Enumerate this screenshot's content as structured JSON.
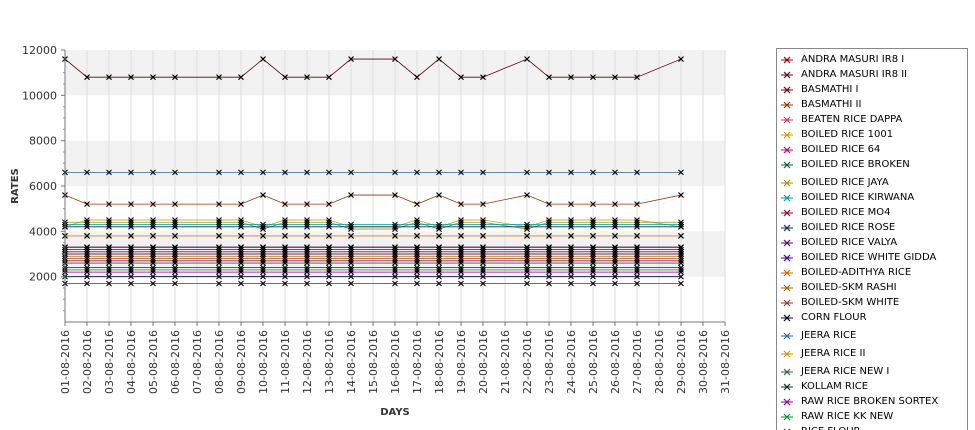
{
  "chart_data": {
    "type": "line",
    "xlabel": "DAYS",
    "ylabel": "RATES",
    "ylim": [
      0,
      12000
    ],
    "y_ticks": [
      2000,
      4000,
      6000,
      8000,
      10000,
      12000
    ],
    "y_tick_labels": [
      "2000",
      "4000",
      "6000",
      "8000",
      "10000",
      "12000"
    ],
    "x_ticks": [
      "01-08-2016",
      "02-08-2016",
      "03-08-2016",
      "04-08-2016",
      "05-08-2016",
      "06-08-2016",
      "07-08-2016",
      "08-08-2016",
      "09-08-2016",
      "10-08-2016",
      "11-08-2016",
      "12-08-2016",
      "13-08-2016",
      "14-08-2016",
      "15-08-2016",
      "16-08-2016",
      "17-08-2016",
      "18-08-2016",
      "19-08-2016",
      "20-08-2016",
      "21-08-2016",
      "22-08-2016",
      "23-08-2016",
      "24-08-2016",
      "25-08-2016",
      "26-08-2016",
      "27-08-2016",
      "28-08-2016",
      "29-08-2016",
      "30-08-2016",
      "31-08-2016"
    ],
    "x": [
      "01-08-2016",
      "02-08-2016",
      "03-08-2016",
      "04-08-2016",
      "05-08-2016",
      "06-08-2016",
      "08-08-2016",
      "09-08-2016",
      "10-08-2016",
      "11-08-2016",
      "12-08-2016",
      "13-08-2016",
      "14-08-2016",
      "16-08-2016",
      "17-08-2016",
      "18-08-2016",
      "19-08-2016",
      "20-08-2016",
      "22-08-2016",
      "23-08-2016",
      "24-08-2016",
      "25-08-2016",
      "26-08-2016",
      "27-08-2016",
      "29-08-2016"
    ],
    "grid": "alternating horizontal bands",
    "legend_position": "right",
    "series": [
      {
        "name": "ANDRA MASURI IR8 I",
        "color": "#990000",
        "values": [
          3300,
          3300,
          3300,
          3300,
          3300,
          3300,
          3300,
          3300,
          3300,
          3300,
          3300,
          3300,
          3300,
          3300,
          3300,
          3300,
          3300,
          3300,
          3300,
          3300,
          3300,
          3300,
          3300,
          3300,
          3300
        ]
      },
      {
        "name": "ANDRA MASURI IR8 II",
        "color": "#660033",
        "values": [
          3200,
          3200,
          3200,
          3200,
          3200,
          3200,
          3200,
          3200,
          3200,
          3200,
          3200,
          3200,
          3200,
          3200,
          3200,
          3200,
          3200,
          3200,
          3200,
          3200,
          3200,
          3200,
          3200,
          3200,
          3200
        ]
      },
      {
        "name": "BASMATHI I",
        "color": "#660000",
        "values": [
          11600,
          10800,
          10800,
          10800,
          10800,
          10800,
          10800,
          10800,
          11600,
          10800,
          10800,
          10800,
          11600,
          11600,
          10800,
          11600,
          10800,
          10800,
          11600,
          10800,
          10800,
          10800,
          10800,
          10800,
          11600
        ]
      },
      {
        "name": "BASMATHI II",
        "color": "#993300",
        "values": [
          5600,
          5200,
          5200,
          5200,
          5200,
          5200,
          5200,
          5200,
          5600,
          5200,
          5200,
          5200,
          5600,
          5600,
          5200,
          5600,
          5200,
          5200,
          5600,
          5200,
          5200,
          5200,
          5200,
          5200,
          5600
        ]
      },
      {
        "name": "BEATEN RICE DAPPA",
        "color": "#cc3366",
        "values": [
          3800,
          3800,
          3800,
          3800,
          3800,
          3800,
          3800,
          3800,
          3800,
          3800,
          3800,
          3800,
          3800,
          3800,
          3800,
          3800,
          3800,
          3800,
          3800,
          3800,
          3800,
          3800,
          3800,
          3800,
          3800
        ]
      },
      {
        "name": "BOILED RICE 1001",
        "color": "#cc9900",
        "values": [
          4200,
          4500,
          4500,
          4500,
          4500,
          4500,
          4500,
          4500,
          4200,
          4500,
          4500,
          4500,
          4200,
          4200,
          4500,
          4200,
          4500,
          4500,
          4200,
          4500,
          4500,
          4500,
          4500,
          4500,
          4200
        ]
      },
      {
        "name": "BOILED RICE 64",
        "color": "#cc0066",
        "values": [
          2700,
          2700,
          2700,
          2700,
          2700,
          2700,
          2700,
          2700,
          2700,
          2700,
          2700,
          2700,
          2700,
          2700,
          2700,
          2700,
          2700,
          2700,
          2700,
          2700,
          2700,
          2700,
          2700,
          2700,
          2700
        ]
      },
      {
        "name": "BOILED RICE BROKEN",
        "color": "#006633",
        "values": [
          1700,
          1700,
          1700,
          1700,
          1700,
          1700,
          1700,
          1700,
          1700,
          1700,
          1700,
          1700,
          1700,
          1700,
          1700,
          1700,
          1700,
          1700,
          1700,
          1700,
          1700,
          1700,
          1700,
          1700,
          1700
        ]
      },
      {
        "name": "BOILED RICE JAYA",
        "color": "#999900",
        "values": [
          4400,
          4400,
          4400,
          4400,
          4400,
          4400,
          4400,
          4400,
          4100,
          4400,
          4400,
          4400,
          4100,
          4100,
          4400,
          4100,
          4400,
          4400,
          4100,
          4400,
          4400,
          4400,
          4400,
          4400,
          4400
        ]
      },
      {
        "name": "BOILED RICE KIRWANA",
        "color": "#009999",
        "values": [
          4300,
          4300,
          4300,
          4300,
          4300,
          4300,
          4300,
          4300,
          4300,
          4300,
          4300,
          4300,
          4300,
          4300,
          4300,
          4300,
          4300,
          4300,
          4300,
          4300,
          4300,
          4300,
          4300,
          4300,
          4300
        ]
      },
      {
        "name": "BOILED RICE MO4",
        "color": "#990033",
        "values": [
          3100,
          3100,
          3100,
          3100,
          3100,
          3100,
          3100,
          3100,
          3100,
          3100,
          3100,
          3100,
          3100,
          3100,
          3100,
          3100,
          3100,
          3100,
          3100,
          3100,
          3100,
          3100,
          3100,
          3100,
          3100
        ]
      },
      {
        "name": "BOILED RICE ROSE",
        "color": "#003366",
        "values": [
          4200,
          4200,
          4200,
          4200,
          4200,
          4200,
          4200,
          4200,
          4200,
          4200,
          4200,
          4200,
          4200,
          4200,
          4200,
          4200,
          4200,
          4200,
          4200,
          4200,
          4200,
          4200,
          4200,
          4200,
          4200
        ]
      },
      {
        "name": "BOILED RICE VALYA",
        "color": "#660066",
        "values": [
          3000,
          3000,
          3000,
          3000,
          3000,
          3000,
          3000,
          3000,
          3000,
          3000,
          3000,
          3000,
          3000,
          3000,
          3000,
          3000,
          3000,
          3000,
          3000,
          3000,
          3000,
          3000,
          3000,
          3000,
          3000
        ]
      },
      {
        "name": "BOILED RICE WHITE GIDDA",
        "color": "#330099",
        "values": [
          3300,
          3300,
          3300,
          3300,
          3300,
          3300,
          3300,
          3300,
          3300,
          3300,
          3300,
          3300,
          3300,
          3300,
          3300,
          3300,
          3300,
          3300,
          3300,
          3300,
          3300,
          3300,
          3300,
          3300,
          3300
        ]
      },
      {
        "name": "BOILED-ADITHYA RICE",
        "color": "#cc6600",
        "values": [
          2900,
          2900,
          2900,
          2900,
          2900,
          2900,
          2900,
          2900,
          2900,
          2900,
          2900,
          2900,
          2900,
          2900,
          2900,
          2900,
          2900,
          2900,
          2900,
          2900,
          2900,
          2900,
          2900,
          2900,
          2900
        ]
      },
      {
        "name": "BOILED-SKM RASHI",
        "color": "#996600",
        "values": [
          2800,
          2800,
          2800,
          2800,
          2800,
          2800,
          2800,
          2800,
          2800,
          2800,
          2800,
          2800,
          2800,
          2800,
          2800,
          2800,
          2800,
          2800,
          2800,
          2800,
          2800,
          2800,
          2800,
          2800,
          2800
        ]
      },
      {
        "name": "BOILED-SKM WHITE",
        "color": "#993333",
        "values": [
          3100,
          3100,
          3100,
          3100,
          3100,
          3100,
          3100,
          3100,
          3100,
          3100,
          3100,
          3100,
          3100,
          3100,
          3100,
          3100,
          3100,
          3100,
          3100,
          3100,
          3100,
          3100,
          3100,
          3100,
          3100
        ]
      },
      {
        "name": "CORN FLOUR",
        "color": "#000033",
        "values": [
          2000,
          2000,
          2000,
          2000,
          2000,
          2000,
          2000,
          2000,
          2000,
          2000,
          2000,
          2000,
          2000,
          2000,
          2000,
          2000,
          2000,
          2000,
          2000,
          2000,
          2000,
          2000,
          2000,
          2000,
          2000
        ]
      },
      {
        "name": "JEERA RICE",
        "color": "#336699",
        "values": [
          6600,
          6600,
          6600,
          6600,
          6600,
          6600,
          6600,
          6600,
          6600,
          6600,
          6600,
          6600,
          6600,
          6600,
          6600,
          6600,
          6600,
          6600,
          6600,
          6600,
          6600,
          6600,
          6600,
          6600,
          6600
        ]
      },
      {
        "name": "JEERA RICE II",
        "color": "#cc9900",
        "values": [
          3800,
          3800,
          3800,
          3800,
          3800,
          3800,
          3800,
          3800,
          3800,
          3800,
          3800,
          3800,
          3800,
          3800,
          3800,
          3800,
          3800,
          3800,
          3800,
          3800,
          3800,
          3800,
          3800,
          3800,
          3800
        ]
      },
      {
        "name": "JEERA RICE NEW I",
        "color": "#336633",
        "values": [
          2600,
          2600,
          2600,
          2600,
          2600,
          2600,
          2600,
          2600,
          2600,
          2600,
          2600,
          2600,
          2600,
          2600,
          2600,
          2600,
          2600,
          2600,
          2600,
          2600,
          2600,
          2600,
          2600,
          2600,
          2600
        ]
      },
      {
        "name": "KOLLAM RICE",
        "color": "#003333",
        "values": [
          2400,
          2400,
          2400,
          2400,
          2400,
          2400,
          2400,
          2400,
          2400,
          2400,
          2400,
          2400,
          2400,
          2400,
          2400,
          2400,
          2400,
          2400,
          2400,
          2400,
          2400,
          2400,
          2400,
          2400,
          2400
        ]
      },
      {
        "name": "RAW RICE BROKEN SORTEX",
        "color": "#990099",
        "values": [
          2200,
          2200,
          2200,
          2200,
          2200,
          2200,
          2200,
          2200,
          2200,
          2200,
          2200,
          2200,
          2200,
          2200,
          2200,
          2200,
          2200,
          2200,
          2200,
          2200,
          2200,
          2200,
          2200,
          2200,
          2200
        ]
      },
      {
        "name": "RAW RICE KK NEW",
        "color": "#009933",
        "values": [
          2300,
          2300,
          2300,
          2300,
          2300,
          2300,
          2300,
          2300,
          2300,
          2300,
          2300,
          2300,
          2300,
          2300,
          2300,
          2300,
          2300,
          2300,
          2300,
          2300,
          2300,
          2300,
          2300,
          2300,
          2300
        ]
      },
      {
        "name": "RICE FLOUR",
        "color": "#333399",
        "values": [
          3000,
          3000,
          3000,
          3000,
          3000,
          3000,
          3000,
          3000,
          3000,
          3000,
          3000,
          3000,
          3000,
          3000,
          3000,
          3000,
          3000,
          3000,
          3000,
          3000,
          3000,
          3000,
          3000,
          3000,
          3000
        ]
      }
    ]
  }
}
